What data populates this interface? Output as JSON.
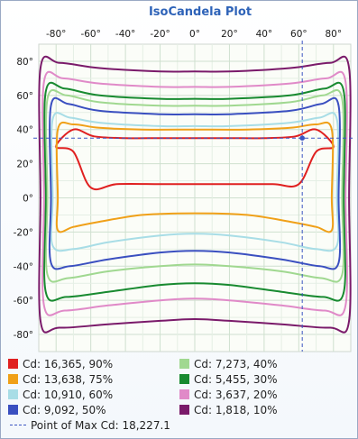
{
  "chart_data": {
    "type": "line",
    "title": "IsoCandela Plot",
    "xlabel": "",
    "ylabel": "",
    "xlim": [
      -90,
      90
    ],
    "ylim": [
      -90,
      90
    ],
    "x_ticks": [
      "-80°",
      "-60°",
      "-40°",
      "-20°",
      "0°",
      "20°",
      "40°",
      "60°",
      "80°"
    ],
    "y_ticks": [
      "80°",
      "60°",
      "40°",
      "20°",
      "0°",
      "-20°",
      "-40°",
      "-60°",
      "-80°"
    ],
    "grid": true,
    "legend_position": "bottom",
    "max_point": {
      "x": 62,
      "y": 35
    },
    "series": [
      {
        "name": "Cd: 16,365, 90%",
        "color": "#e02020",
        "values": [
          [
            -80,
            30
          ],
          [
            -70,
            27
          ],
          [
            -60,
            6
          ],
          [
            -45,
            8
          ],
          [
            -20,
            8
          ],
          [
            0,
            8
          ],
          [
            20,
            8
          ],
          [
            45,
            8
          ],
          [
            60,
            8
          ],
          [
            70,
            27
          ],
          [
            80,
            30
          ],
          [
            70,
            40
          ],
          [
            58,
            36
          ],
          [
            40,
            35
          ],
          [
            20,
            35
          ],
          [
            0,
            35
          ],
          [
            -20,
            35
          ],
          [
            -40,
            35
          ],
          [
            -58,
            36
          ],
          [
            -70,
            40
          ],
          [
            -80,
            30
          ]
        ]
      },
      {
        "name": "Cd: 13,638, 75%",
        "color": "#f0a018",
        "values": [
          [
            -79,
            0
          ],
          [
            -79,
            -19
          ],
          [
            -70,
            -17
          ],
          [
            -55,
            -14
          ],
          [
            -30,
            -10
          ],
          [
            0,
            -9
          ],
          [
            30,
            -10
          ],
          [
            55,
            -14
          ],
          [
            70,
            -17
          ],
          [
            79,
            -19
          ],
          [
            79,
            0
          ],
          [
            79,
            40
          ],
          [
            70,
            43
          ],
          [
            55,
            41
          ],
          [
            30,
            40
          ],
          [
            0,
            40
          ],
          [
            -30,
            40
          ],
          [
            -55,
            41
          ],
          [
            -70,
            43
          ],
          [
            -79,
            40
          ],
          [
            -79,
            0
          ]
        ]
      },
      {
        "name": "Cd: 10,910, 60%",
        "color": "#a8dde6",
        "values": [
          [
            -82,
            0
          ],
          [
            -82,
            -28
          ],
          [
            -70,
            -30
          ],
          [
            -50,
            -26
          ],
          [
            -20,
            -22
          ],
          [
            0,
            -21
          ],
          [
            20,
            -22
          ],
          [
            50,
            -26
          ],
          [
            70,
            -30
          ],
          [
            82,
            -28
          ],
          [
            82,
            0
          ],
          [
            82,
            46
          ],
          [
            72,
            47
          ],
          [
            55,
            44
          ],
          [
            20,
            42
          ],
          [
            0,
            42
          ],
          [
            -20,
            42
          ],
          [
            -55,
            44
          ],
          [
            -72,
            47
          ],
          [
            -82,
            46
          ],
          [
            -82,
            0
          ]
        ]
      },
      {
        "name": "Cd: 9,092, 50%",
        "color": "#3a4fc0",
        "values": [
          [
            -83,
            0
          ],
          [
            -83,
            -38
          ],
          [
            -72,
            -40
          ],
          [
            -50,
            -36
          ],
          [
            -20,
            -32
          ],
          [
            0,
            -31
          ],
          [
            20,
            -32
          ],
          [
            50,
            -36
          ],
          [
            72,
            -40
          ],
          [
            83,
            -38
          ],
          [
            83,
            0
          ],
          [
            83,
            54
          ],
          [
            73,
            55
          ],
          [
            55,
            51
          ],
          [
            20,
            49
          ],
          [
            0,
            49
          ],
          [
            -20,
            49
          ],
          [
            -55,
            51
          ],
          [
            -73,
            55
          ],
          [
            -83,
            54
          ],
          [
            -83,
            0
          ]
        ]
      },
      {
        "name": "Cd: 7,273, 40%",
        "color": "#a0d890",
        "values": [
          [
            -85,
            0
          ],
          [
            -85,
            -45
          ],
          [
            -73,
            -47
          ],
          [
            -50,
            -43
          ],
          [
            -20,
            -40
          ],
          [
            0,
            -39
          ],
          [
            20,
            -40
          ],
          [
            50,
            -43
          ],
          [
            73,
            -47
          ],
          [
            85,
            -45
          ],
          [
            85,
            0
          ],
          [
            85,
            58
          ],
          [
            74,
            60
          ],
          [
            55,
            56
          ],
          [
            20,
            54
          ],
          [
            0,
            54
          ],
          [
            -20,
            54
          ],
          [
            -55,
            56
          ],
          [
            -74,
            60
          ],
          [
            -85,
            58
          ],
          [
            -85,
            0
          ]
        ]
      },
      {
        "name": "Cd: 5,455, 30%",
        "color": "#188a30",
        "values": [
          [
            -86,
            0
          ],
          [
            -86,
            -55
          ],
          [
            -74,
            -58
          ],
          [
            -50,
            -55
          ],
          [
            -20,
            -51
          ],
          [
            0,
            -50
          ],
          [
            20,
            -51
          ],
          [
            50,
            -55
          ],
          [
            74,
            -58
          ],
          [
            86,
            -55
          ],
          [
            86,
            0
          ],
          [
            86,
            62
          ],
          [
            75,
            64
          ],
          [
            55,
            60
          ],
          [
            20,
            58
          ],
          [
            0,
            58
          ],
          [
            -20,
            58
          ],
          [
            -55,
            60
          ],
          [
            -75,
            64
          ],
          [
            -86,
            62
          ],
          [
            -86,
            0
          ]
        ]
      },
      {
        "name": "Cd: 3,637, 20%",
        "color": "#e08ac8",
        "values": [
          [
            -87,
            0
          ],
          [
            -87,
            -63
          ],
          [
            -75,
            -66
          ],
          [
            -50,
            -63
          ],
          [
            -20,
            -60
          ],
          [
            0,
            -59
          ],
          [
            20,
            -60
          ],
          [
            50,
            -63
          ],
          [
            75,
            -66
          ],
          [
            87,
            -63
          ],
          [
            87,
            0
          ],
          [
            87,
            68
          ],
          [
            76,
            70
          ],
          [
            55,
            67
          ],
          [
            20,
            65
          ],
          [
            0,
            65
          ],
          [
            -20,
            65
          ],
          [
            -55,
            67
          ],
          [
            -76,
            70
          ],
          [
            -87,
            68
          ],
          [
            -87,
            0
          ]
        ]
      },
      {
        "name": "Cd: 1,818, 10%",
        "color": "#7a1a6a",
        "values": [
          [
            -89,
            0
          ],
          [
            -89,
            -72
          ],
          [
            -78,
            -76
          ],
          [
            -50,
            -74
          ],
          [
            -20,
            -72
          ],
          [
            0,
            -71
          ],
          [
            20,
            -72
          ],
          [
            50,
            -74
          ],
          [
            78,
            -76
          ],
          [
            89,
            -72
          ],
          [
            89,
            0
          ],
          [
            89,
            76
          ],
          [
            78,
            79
          ],
          [
            55,
            76
          ],
          [
            20,
            74
          ],
          [
            0,
            74
          ],
          [
            -20,
            74
          ],
          [
            -55,
            76
          ],
          [
            -78,
            79
          ],
          [
            -89,
            76
          ],
          [
            -89,
            0
          ]
        ]
      }
    ],
    "max_label": "Point of Max Cd: 18,227.1",
    "max_color": "#3b55c2"
  }
}
